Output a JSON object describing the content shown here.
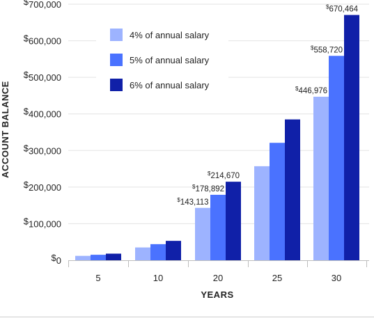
{
  "chart_data": {
    "type": "bar",
    "title": "",
    "xlabel": "YEARS",
    "ylabel": "ACCOUNT BALANCE",
    "ylim": [
      0,
      700000
    ],
    "yticks": [
      0,
      100000,
      200000,
      300000,
      400000,
      500000,
      600000,
      700000
    ],
    "ytick_labels": [
      "$0",
      "$100,000",
      "$200,000",
      "$300,000",
      "$400,000",
      "$500,000",
      "$600,000",
      "$700,000"
    ],
    "categories": [
      "5",
      "10",
      "20",
      "25",
      "30"
    ],
    "grid": "horizontal",
    "legend_position": "top-left",
    "series": [
      {
        "name": "4% of annual salary",
        "color": "#9db3ff",
        "values": [
          12000,
          35000,
          143113,
          257000,
          446976
        ]
      },
      {
        "name": "5% of annual salary",
        "color": "#4a72ff",
        "values": [
          15000,
          44000,
          178892,
          321000,
          558720
        ]
      },
      {
        "name": "6% of annual salary",
        "color": "#1020a8",
        "values": [
          18000,
          53000,
          214670,
          385000,
          670464
        ]
      }
    ],
    "data_labels": [
      {
        "category": "20",
        "series": 0,
        "text": "$143,113"
      },
      {
        "category": "20",
        "series": 1,
        "text": "$178,892"
      },
      {
        "category": "20",
        "series": 2,
        "text": "$214,670"
      },
      {
        "category": "30",
        "series": 0,
        "text": "$446,976"
      },
      {
        "category": "30",
        "series": 1,
        "text": "$558,720"
      },
      {
        "category": "30",
        "series": 2,
        "text": "$670,464"
      }
    ]
  }
}
